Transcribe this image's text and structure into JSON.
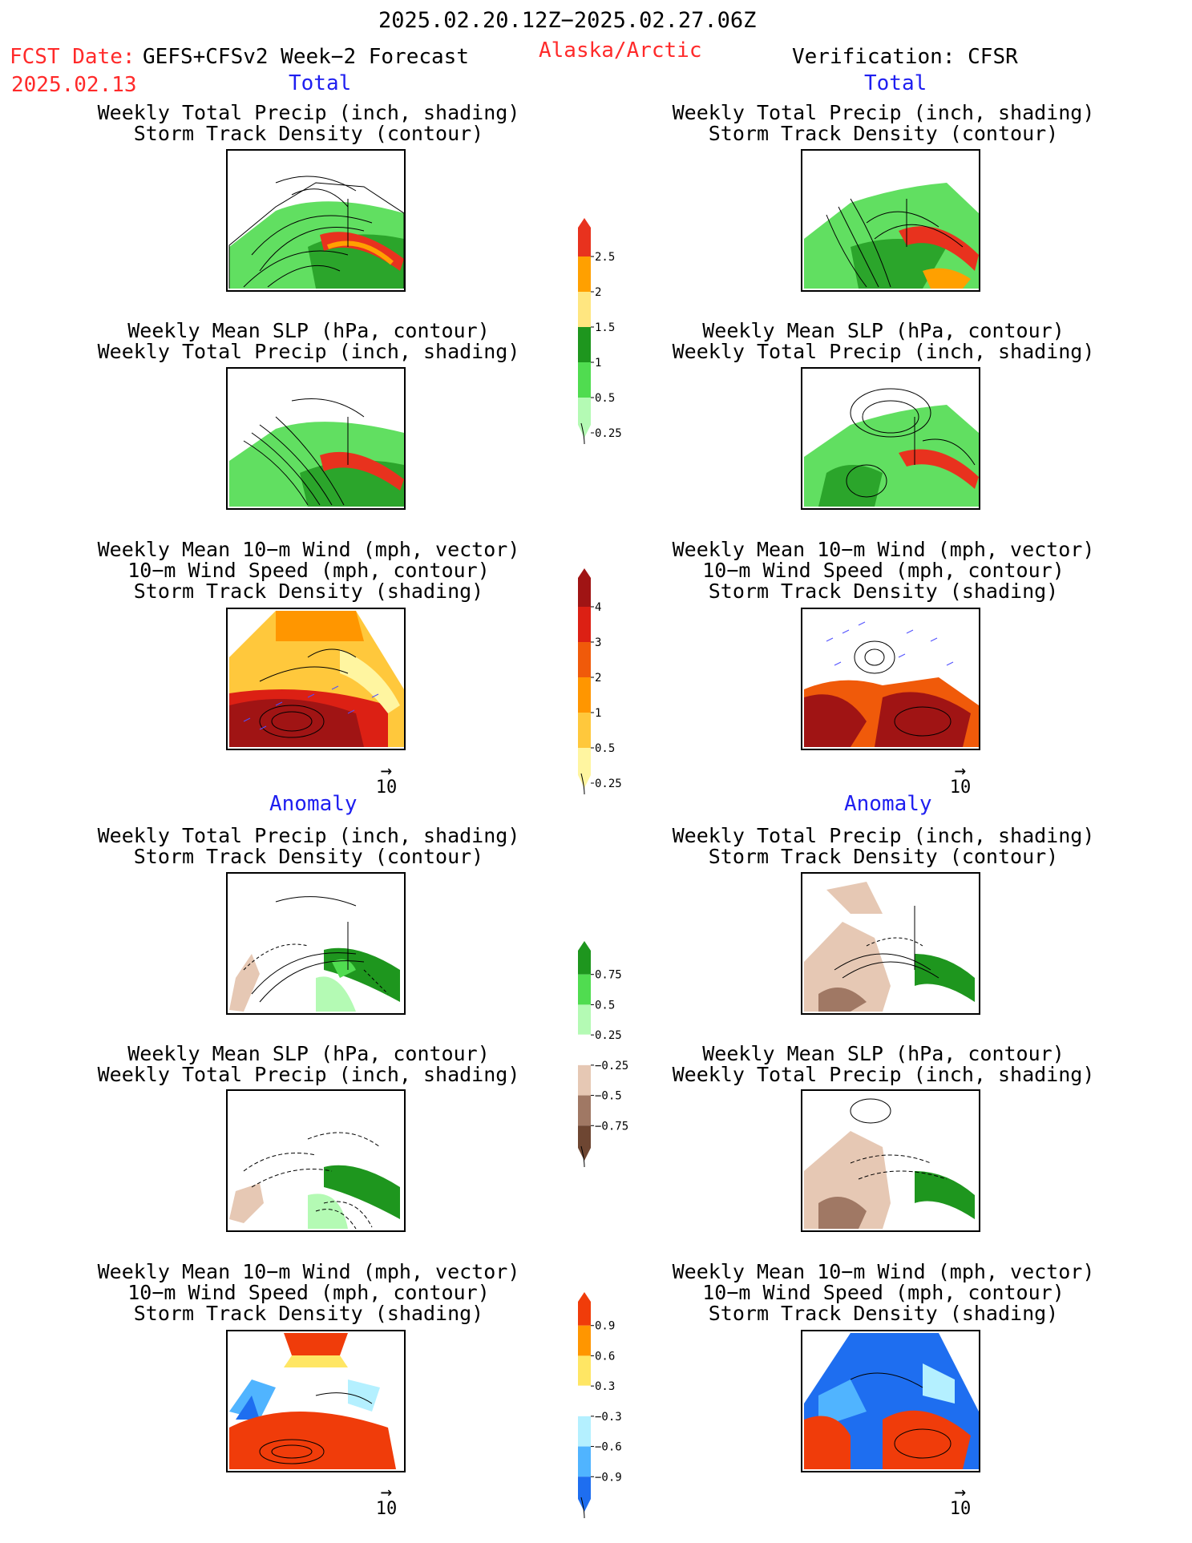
{
  "header": {
    "date_range": "2025.02.20.12Z−2025.02.27.06Z",
    "fcst_label": "FCST Date:",
    "model": "GEFS+CFSv2 Week−2 Forecast",
    "fcst_date": "2025.02.13",
    "region": "Alaska/Arctic",
    "verification": "Verification: CFSR"
  },
  "sections": {
    "total": "Total",
    "anomaly": "Anomaly"
  },
  "titles": {
    "precip_storm": [
      "Weekly Total Precip (inch, shading)",
      "Storm Track Density (contour)"
    ],
    "slp_precip": [
      "Weekly Mean SLP (hPa, contour)",
      "Weekly Total Precip (inch, shading)"
    ],
    "wind_storm": [
      "Weekly Mean 10−m Wind (mph, vector)",
      "10−m Wind Speed (mph, contour)",
      "Storm Track Density (shading)"
    ]
  },
  "vector_ref": "10",
  "colorbars": {
    "precip_total": {
      "labels": [
        "2.5",
        "2",
        "1.5",
        "1",
        "0.5",
        "0.25"
      ],
      "colors": [
        "#e8321e",
        "#ffa000",
        "#ffe680",
        "#1e961e",
        "#50dc50",
        "#b4fab4"
      ]
    },
    "storm_total": {
      "labels": [
        "4",
        "3",
        "2",
        "1",
        "0.5",
        "0.25"
      ],
      "colors": [
        "#a01414",
        "#dc2014",
        "#f05a0a",
        "#ff9600",
        "#ffc83c",
        "#fff5a0"
      ]
    },
    "precip_anom": {
      "labels": [
        "0.75",
        "0.5",
        "0.25",
        "−0.25",
        "−0.5",
        "−0.75"
      ],
      "colors": [
        "#1e961e",
        "#50dc50",
        "#b4fab4",
        "#ffffff",
        "#e6c8b4",
        "#a07864",
        "#6e4632"
      ]
    },
    "storm_anom": {
      "labels": [
        "0.9",
        "0.6",
        "0.3",
        "−0.3",
        "−0.6",
        "−0.9"
      ],
      "colors": [
        "#f03c0a",
        "#ff9600",
        "#ffe664",
        "#ffffff",
        "#b4f0ff",
        "#50b4ff",
        "#1e6ef0"
      ]
    }
  }
}
